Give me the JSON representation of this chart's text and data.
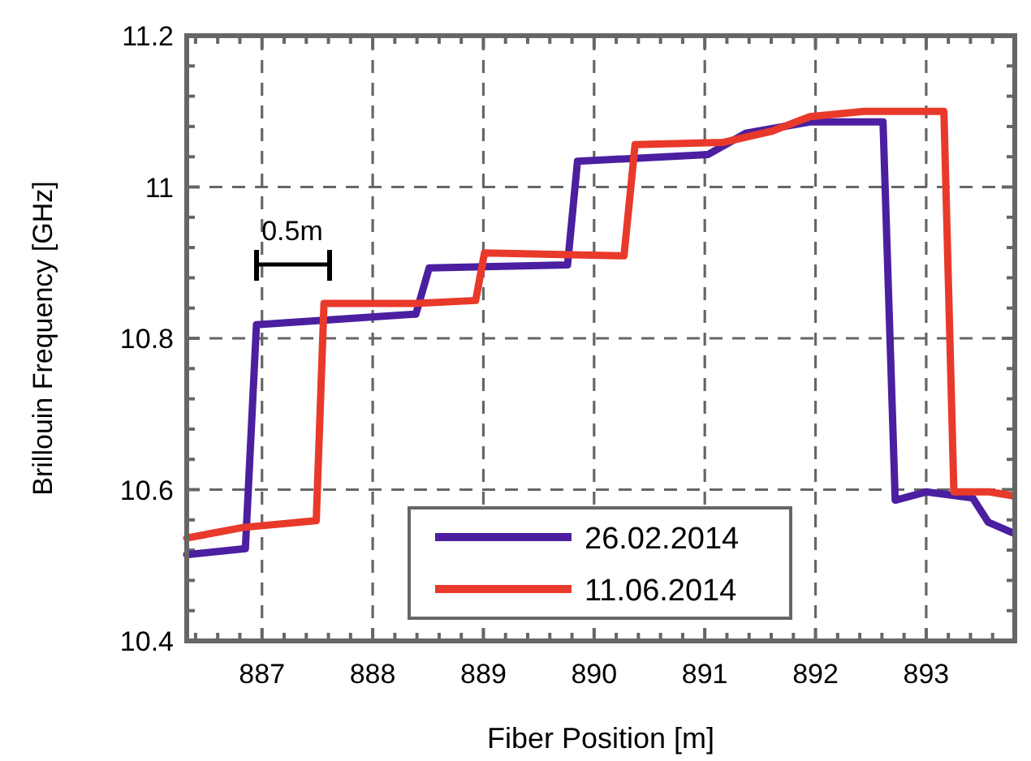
{
  "chart_data": {
    "type": "line",
    "xlabel": "Fiber Position [m]",
    "ylabel": "Brillouin Frequency [GHz]",
    "xlim": [
      886.32,
      893.8
    ],
    "ylim": [
      10.4,
      11.2
    ],
    "xticks": [
      {
        "value": 886.4,
        "label": null
      },
      {
        "value": 886.6,
        "label": null
      },
      {
        "value": 886.8,
        "label": null
      },
      887,
      {
        "value": 887.2,
        "label": null
      },
      {
        "value": 887.4,
        "label": null
      },
      {
        "value": 887.6,
        "label": null
      },
      {
        "value": 887.8,
        "label": null
      },
      888,
      {
        "value": 888.2,
        "label": null
      },
      {
        "value": 888.4,
        "label": null
      },
      {
        "value": 888.6,
        "label": null
      },
      {
        "value": 888.8,
        "label": null
      },
      889,
      {
        "value": 889.2,
        "label": null
      },
      {
        "value": 889.4,
        "label": null
      },
      {
        "value": 889.6,
        "label": null
      },
      {
        "value": 889.8,
        "label": null
      },
      890,
      {
        "value": 890.2,
        "label": null
      },
      {
        "value": 890.4,
        "label": null
      },
      {
        "value": 890.6,
        "label": null
      },
      {
        "value": 890.8,
        "label": null
      },
      891,
      {
        "value": 891.2,
        "label": null
      },
      {
        "value": 891.4,
        "label": null
      },
      {
        "value": 891.6,
        "label": null
      },
      {
        "value": 891.8,
        "label": null
      },
      892,
      {
        "value": 892.2,
        "label": null
      },
      {
        "value": 892.4,
        "label": null
      },
      {
        "value": 892.6,
        "label": null
      },
      {
        "value": 892.8,
        "label": null
      },
      893,
      {
        "value": 893.2,
        "label": null
      },
      {
        "value": 893.4,
        "label": null
      },
      {
        "value": 893.6,
        "label": null
      }
    ],
    "yticks": [
      10.4,
      {
        "value": 10.44,
        "label": null
      },
      {
        "value": 10.48,
        "label": null
      },
      {
        "value": 10.52,
        "label": null
      },
      {
        "value": 10.56,
        "label": null
      },
      10.6,
      {
        "value": 10.64,
        "label": null
      },
      {
        "value": 10.68,
        "label": null
      },
      {
        "value": 10.72,
        "label": null
      },
      {
        "value": 10.76,
        "label": null
      },
      10.8,
      {
        "value": 10.84,
        "label": null
      },
      {
        "value": 10.88,
        "label": null
      },
      {
        "value": 10.92,
        "label": null
      },
      {
        "value": 10.96,
        "label": null
      },
      11,
      {
        "value": 11.04,
        "label": null
      },
      {
        "value": 11.08,
        "label": null
      },
      {
        "value": 11.12,
        "label": null
      },
      {
        "value": 11.16,
        "label": null
      },
      11.2
    ],
    "grid": true,
    "legend": "bottom",
    "line_style": "solid",
    "annotations": [
      "0.5m"
    ],
    "series": [
      {
        "name": "26.02.2014",
        "color": "#4b1fa0",
        "x": [
          886.32,
          886.85,
          886.95,
          888.39,
          888.51,
          889.76,
          889.85,
          891.03,
          891.37,
          891.95,
          892.61,
          892.72,
          893.0,
          893.42,
          893.56,
          893.78
        ],
        "values": [
          10.514,
          10.522,
          10.818,
          10.832,
          10.893,
          10.897,
          11.034,
          11.043,
          11.071,
          11.086,
          11.086,
          10.586,
          10.597,
          10.589,
          10.557,
          10.543
        ]
      },
      {
        "name": "11.06.2014",
        "color": "#e8392b",
        "x": [
          886.32,
          886.83,
          887.49,
          887.56,
          888.39,
          888.93,
          889.01,
          890.27,
          890.37,
          891.17,
          891.61,
          891.95,
          892.44,
          893.16,
          893.25,
          893.57,
          893.78
        ],
        "values": [
          10.536,
          10.55,
          10.559,
          10.846,
          10.846,
          10.85,
          10.913,
          10.909,
          11.056,
          11.059,
          11.074,
          11.093,
          11.1,
          11.1,
          10.597,
          10.597,
          10.592
        ]
      }
    ]
  }
}
